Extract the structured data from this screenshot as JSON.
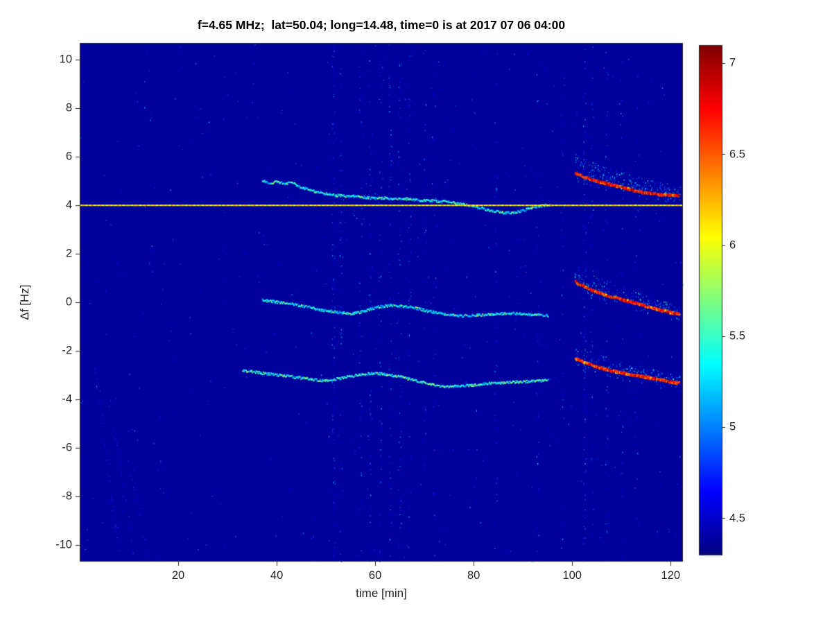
{
  "chart_data": {
    "type": "heatmap",
    "title": "f=4.65 MHz;  lat=50.04; long=14.48, time=0 is at 2017 07 06 04:00",
    "xlabel": "time [min]",
    "ylabel": "Δf [Hz]",
    "xlim": [
      0,
      122.5
    ],
    "ylim": [
      -10.7,
      10.7
    ],
    "xticks": [
      20,
      40,
      60,
      80,
      100,
      120
    ],
    "yticks": [
      -10,
      -8,
      -6,
      -4,
      -2,
      0,
      2,
      4,
      6,
      8,
      10
    ],
    "grid": false,
    "colorbar": {
      "min": 4.3,
      "max": 7.1,
      "ticks": [
        4.5,
        5,
        5.5,
        6,
        6.5,
        7
      ],
      "colormap": "jet",
      "position": "right"
    },
    "background_value": 4.38,
    "carrier_line": {
      "y": 4.0,
      "x_start": 0,
      "x_end": 122.5,
      "intensity": 6.05
    },
    "traces": [
      {
        "name": "upper-sideband-weak",
        "kind": "weak",
        "intensity": [
          5.0,
          5.65
        ],
        "points": [
          [
            37,
            5.05
          ],
          [
            38.5,
            4.95
          ],
          [
            40,
            5.0
          ],
          [
            41.5,
            4.92
          ],
          [
            43,
            4.98
          ],
          [
            44.5,
            4.8
          ],
          [
            46,
            4.7
          ],
          [
            48,
            4.58
          ],
          [
            50,
            4.5
          ],
          [
            52,
            4.44
          ],
          [
            54,
            4.4
          ],
          [
            56,
            4.42
          ],
          [
            58,
            4.35
          ],
          [
            60,
            4.3
          ],
          [
            62,
            4.33
          ],
          [
            64,
            4.28
          ],
          [
            66,
            4.3
          ],
          [
            68,
            4.25
          ],
          [
            70,
            4.22
          ],
          [
            72,
            4.2
          ],
          [
            74,
            4.18
          ],
          [
            76,
            4.12
          ],
          [
            78,
            4.05
          ],
          [
            80,
            3.98
          ],
          [
            82,
            3.88
          ],
          [
            84,
            3.78
          ],
          [
            86,
            3.72
          ],
          [
            88,
            3.72
          ],
          [
            90,
            3.82
          ],
          [
            92,
            3.95
          ],
          [
            94,
            4.02
          ],
          [
            95.5,
            4.05
          ]
        ]
      },
      {
        "name": "middle-trace-weak",
        "kind": "weak",
        "intensity": [
          5.0,
          5.6
        ],
        "points": [
          [
            37,
            0.12
          ],
          [
            39,
            0.06
          ],
          [
            41,
            0.0
          ],
          [
            43,
            -0.05
          ],
          [
            45,
            -0.12
          ],
          [
            47,
            -0.2
          ],
          [
            49,
            -0.3
          ],
          [
            51,
            -0.35
          ],
          [
            53,
            -0.4
          ],
          [
            55,
            -0.44
          ],
          [
            57,
            -0.38
          ],
          [
            59,
            -0.25
          ],
          [
            61,
            -0.15
          ],
          [
            63,
            -0.1
          ],
          [
            65,
            -0.12
          ],
          [
            67,
            -0.18
          ],
          [
            69,
            -0.26
          ],
          [
            71,
            -0.35
          ],
          [
            73,
            -0.44
          ],
          [
            75,
            -0.5
          ],
          [
            77,
            -0.53
          ],
          [
            79,
            -0.53
          ],
          [
            81,
            -0.5
          ],
          [
            83,
            -0.48
          ],
          [
            85,
            -0.45
          ],
          [
            87,
            -0.43
          ],
          [
            89,
            -0.44
          ],
          [
            91,
            -0.47
          ],
          [
            93,
            -0.5
          ],
          [
            95,
            -0.52
          ]
        ]
      },
      {
        "name": "lower-trace-weak",
        "kind": "weak",
        "intensity": [
          5.05,
          5.75
        ],
        "points": [
          [
            33,
            -2.78
          ],
          [
            35,
            -2.84
          ],
          [
            37,
            -2.9
          ],
          [
            39,
            -2.95
          ],
          [
            41,
            -3.0
          ],
          [
            43,
            -3.05
          ],
          [
            45,
            -3.1
          ],
          [
            47,
            -3.15
          ],
          [
            49,
            -3.2
          ],
          [
            51,
            -3.18
          ],
          [
            53,
            -3.1
          ],
          [
            55,
            -3.02
          ],
          [
            57,
            -2.95
          ],
          [
            59,
            -2.9
          ],
          [
            61,
            -2.92
          ],
          [
            63,
            -2.98
          ],
          [
            65,
            -3.05
          ],
          [
            67,
            -3.15
          ],
          [
            69,
            -3.25
          ],
          [
            71,
            -3.35
          ],
          [
            73,
            -3.42
          ],
          [
            75,
            -3.46
          ],
          [
            77,
            -3.44
          ],
          [
            79,
            -3.4
          ],
          [
            81,
            -3.36
          ],
          [
            83,
            -3.32
          ],
          [
            85,
            -3.3
          ],
          [
            87,
            -3.28
          ],
          [
            89,
            -3.26
          ],
          [
            91,
            -3.24
          ],
          [
            93,
            -3.22
          ],
          [
            95,
            -3.2
          ]
        ]
      },
      {
        "name": "upper-sideband-strong",
        "kind": "strong",
        "intensity": [
          6.45,
          7.05
        ],
        "cloud": {
          "count": 420,
          "up": 0.85,
          "down": 0.28
        },
        "points": [
          [
            100.5,
            5.35
          ],
          [
            102,
            5.2
          ],
          [
            104,
            5.05
          ],
          [
            106,
            4.95
          ],
          [
            108,
            4.85
          ],
          [
            110,
            4.75
          ],
          [
            112,
            4.65
          ],
          [
            114,
            4.55
          ],
          [
            116,
            4.5
          ],
          [
            118,
            4.45
          ],
          [
            120,
            4.42
          ],
          [
            121.5,
            4.4
          ]
        ]
      },
      {
        "name": "middle-trace-strong",
        "kind": "strong",
        "intensity": [
          6.45,
          7.05
        ],
        "cloud": {
          "count": 340,
          "up": 0.7,
          "down": 0.28
        },
        "points": [
          [
            100.5,
            0.85
          ],
          [
            102,
            0.7
          ],
          [
            104,
            0.5
          ],
          [
            106,
            0.35
          ],
          [
            108,
            0.22
          ],
          [
            110,
            0.12
          ],
          [
            112,
            0.02
          ],
          [
            114,
            -0.1
          ],
          [
            116,
            -0.22
          ],
          [
            118,
            -0.32
          ],
          [
            120,
            -0.42
          ],
          [
            121.5,
            -0.48
          ]
        ]
      },
      {
        "name": "lower-trace-strong",
        "kind": "strong",
        "intensity": [
          6.4,
          7.0
        ],
        "cloud": {
          "count": 310,
          "up": 0.6,
          "down": 0.32
        },
        "points": [
          [
            100.5,
            -2.3
          ],
          [
            102,
            -2.45
          ],
          [
            104,
            -2.6
          ],
          [
            106,
            -2.72
          ],
          [
            108,
            -2.82
          ],
          [
            110,
            -2.9
          ],
          [
            112,
            -2.98
          ],
          [
            114,
            -3.05
          ],
          [
            116,
            -3.12
          ],
          [
            118,
            -3.2
          ],
          [
            120,
            -3.28
          ],
          [
            121.5,
            -3.32
          ]
        ]
      }
    ],
    "noise": {
      "seed": 7,
      "uniform_dots": 1000,
      "columns": [
        {
          "x": 51.5,
          "s": 1.0
        },
        {
          "x": 53,
          "s": 0.4
        },
        {
          "x": 57,
          "s": 0.45
        },
        {
          "x": 59,
          "s": 0.5
        },
        {
          "x": 61,
          "s": 0.45
        },
        {
          "x": 63,
          "s": 0.55
        },
        {
          "x": 65,
          "s": 0.45
        },
        {
          "x": 67,
          "s": 0.4
        },
        {
          "x": 70,
          "s": 0.3
        },
        {
          "x": 72,
          "s": 0.25
        },
        {
          "x": 84.5,
          "s": 0.3
        },
        {
          "x": 93,
          "s": 0.35
        },
        {
          "x": 98,
          "s": 0.25
        },
        {
          "x": 102.5,
          "s": 0.95
        },
        {
          "x": 104,
          "s": 0.5
        },
        {
          "x": 107,
          "s": 0.45
        },
        {
          "x": 110,
          "s": 0.3
        },
        {
          "x": 113,
          "s": 0.25
        }
      ],
      "diagonal_streaks": [
        {
          "x1": 3,
          "y1": -2.5,
          "x2": 8,
          "y2": -10.5,
          "n": 60
        },
        {
          "x1": 6,
          "y1": -4.0,
          "x2": 11,
          "y2": -10.5,
          "n": 45
        },
        {
          "x1": 10,
          "y1": -6.5,
          "x2": 14,
          "y2": -10.5,
          "n": 30
        }
      ]
    }
  }
}
